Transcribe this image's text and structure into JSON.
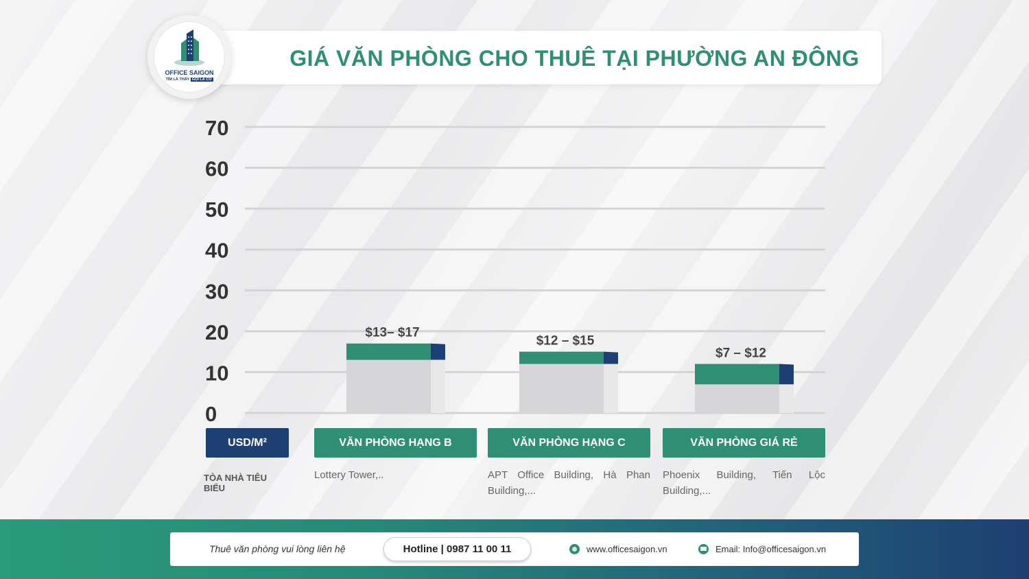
{
  "header": {
    "title": "GIÁ VĂN PHÒNG CHO THUÊ TẠI PHƯỜNG AN ĐÔNG",
    "logo_name": "OFFICE SAIGON",
    "logo_slogan_a": "TÌM LÀ THẤY",
    "logo_slogan_b": "GỌI LÀ CÓ"
  },
  "colors": {
    "brand_green": "#2e8f74",
    "brand_navy": "#1d3f72",
    "bar_gray": "#d6d6d8",
    "bar_gray_side": "#e8e8e9"
  },
  "chart_data": {
    "type": "bar",
    "title": "GIÁ VĂN PHÒNG CHO THUÊ TẠI PHƯỜNG AN ĐÔNG",
    "ylabel": "USD/M²",
    "ylim": [
      0,
      70
    ],
    "yticks": [
      "0",
      "10",
      "20",
      "30",
      "40",
      "50",
      "60",
      "70"
    ],
    "grid": true,
    "categories": [
      "VĂN PHÒNG HẠNG B",
      "VĂN PHÒNG HẠNG C",
      "VĂN PHÒNG GIÁ RẺ"
    ],
    "ranges": [
      {
        "min": 13,
        "max": 17,
        "label": "$13– $17"
      },
      {
        "min": 12,
        "max": 15,
        "label": "$12 – $15"
      },
      {
        "min": 7,
        "max": 12,
        "label": "$7 – $12"
      }
    ]
  },
  "table": {
    "row_label": "TÒA NHÀ TIÊU BIỂU",
    "buildings": [
      "Lottery Tower,..",
      "APT Office Building, Hà Phan Building,...",
      "Phoenix Building, Tiến Lộc Building,..."
    ]
  },
  "footer": {
    "contact_text": "Thuê văn phòng vui lòng liên hệ",
    "hotline": "Hotline | 0987 11 00 11",
    "website": "www.officesaigon.vn",
    "email": "Email: Info@officesaigon.vn",
    "website_icon": "globe-icon",
    "email_icon": "mail-icon"
  }
}
